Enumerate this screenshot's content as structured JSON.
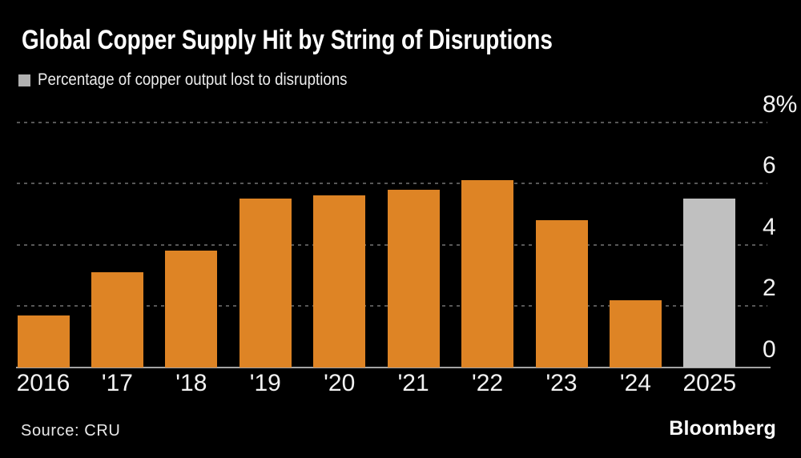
{
  "title": "Global Copper Supply Hit by String of Disruptions",
  "legend": {
    "label": "Percentage of copper output lost to disruptions",
    "swatch_color": "#b1b1b1"
  },
  "source": "Source: CRU",
  "brand": "Bloomberg",
  "colors": {
    "background": "#000000",
    "title_text": "#ffffff",
    "axis_text": "#f2f2f2",
    "gridline": "#575757",
    "axis_line": "#a3a3a3"
  },
  "chart_data": {
    "type": "bar",
    "title": "Global Copper Supply Hit by String of Disruptions",
    "series_label": "Percentage of copper output lost to disruptions",
    "unit": "%",
    "categories": [
      "2016",
      "'17",
      "'18",
      "'19",
      "'20",
      "'21",
      "'22",
      "'23",
      "'24",
      "2025"
    ],
    "values": [
      1.7,
      3.1,
      3.8,
      5.5,
      5.6,
      5.8,
      6.1,
      4.8,
      2.2,
      5.5
    ],
    "bar_color": "#de8425",
    "highlight_index": 9,
    "highlight_color": "#c0c0c0",
    "ylim": [
      0,
      8
    ],
    "yticks": [
      {
        "value": 8,
        "label": "8%"
      },
      {
        "value": 6,
        "label": "6"
      },
      {
        "value": 4,
        "label": "4"
      },
      {
        "value": 2,
        "label": "2"
      },
      {
        "value": 0,
        "label": "0"
      }
    ],
    "grid": "dashed horizontal, labels right",
    "legend_position": "top-left"
  }
}
